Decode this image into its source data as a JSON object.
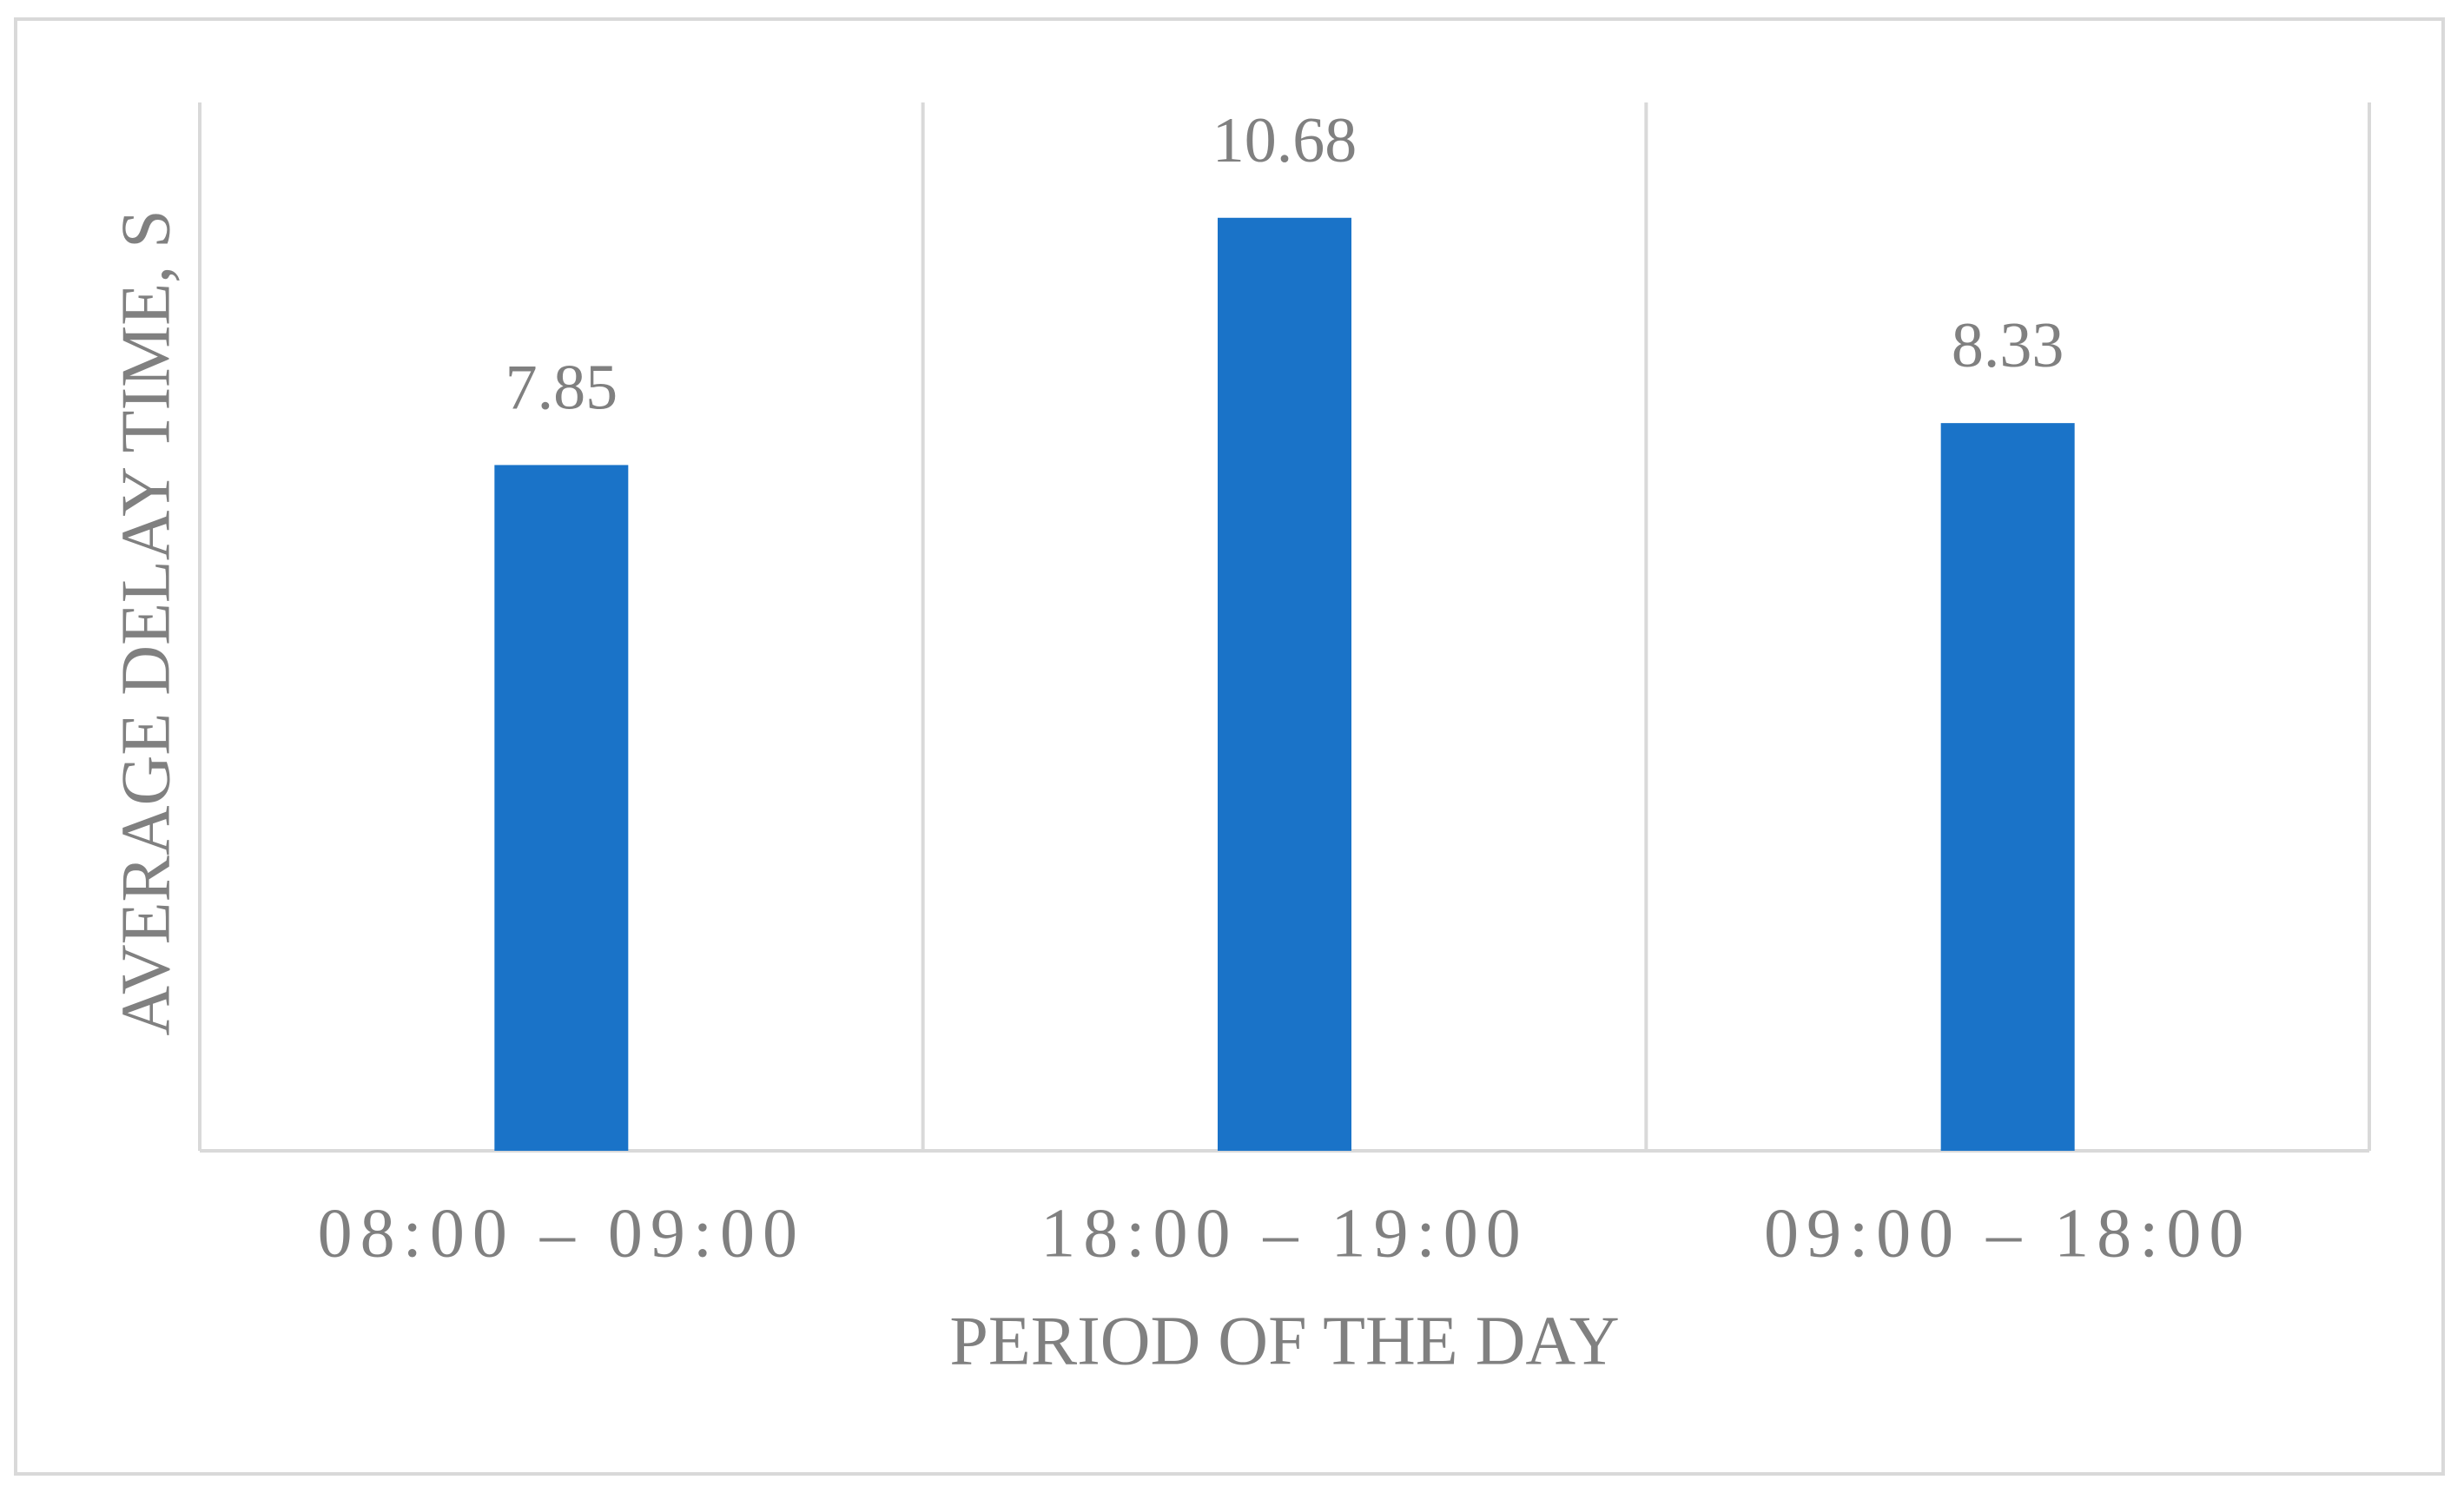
{
  "chart_data": {
    "type": "bar",
    "x_label": "PERIOD OF THE DAY",
    "y_label": "AVERAGE DELAY TIME, S",
    "categories": [
      "08:00 – 09:00",
      "18:00 – 19:00",
      "09:00 – 18:00"
    ],
    "values": [
      7.85,
      10.68,
      8.33
    ],
    "color": "#1a73c8",
    "ylim": [
      0,
      12
    ]
  }
}
